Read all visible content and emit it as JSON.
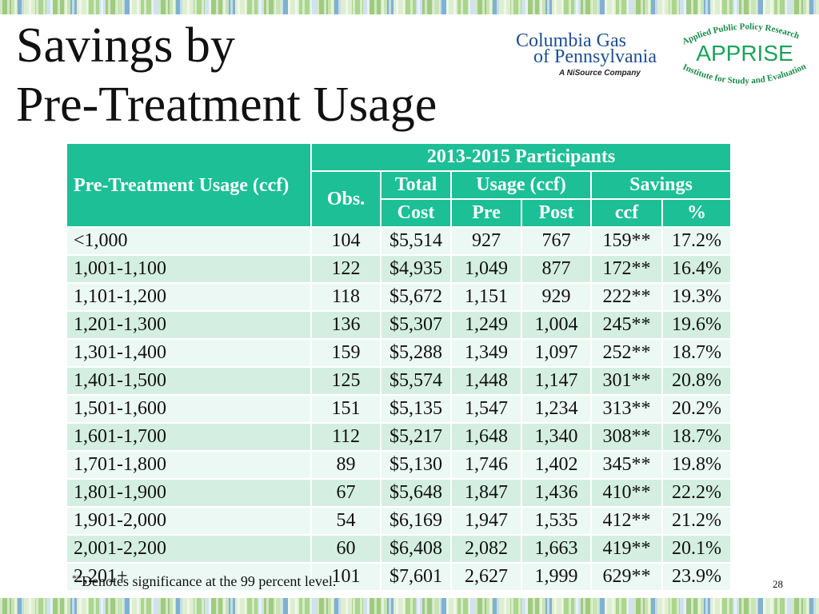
{
  "title": {
    "line1": "Savings by",
    "line2": "Pre-Treatment Usage"
  },
  "logos": {
    "columbia": {
      "line1": "Columbia Gas",
      "line2": "of Pennsylvania",
      "tagline": "A NiSource Company"
    },
    "apprise": {
      "arc_top": "Applied Public Policy Research",
      "name": "APPRISE",
      "arc_bottom": "Institute for Study and Evaluation"
    }
  },
  "table": {
    "group_header": "2013-2015 Participants",
    "row_header": "Pre-Treatment Usage (ccf)",
    "obs": "Obs.",
    "total_cost_top": "Total",
    "total_cost_bottom": "Cost",
    "usage_header": "Usage (ccf)",
    "savings_header": "Savings",
    "pre": "Pre",
    "post": "Post",
    "ccf": "ccf",
    "pct": "%",
    "rows": [
      [
        "<1,000",
        "104",
        "$5,514",
        "927",
        "767",
        "159**",
        "17.2%"
      ],
      [
        "1,001-1,100",
        "122",
        "$4,935",
        "1,049",
        "877",
        "172**",
        "16.4%"
      ],
      [
        "1,101-1,200",
        "118",
        "$5,672",
        "1,151",
        "929",
        "222**",
        "19.3%"
      ],
      [
        "1,201-1,300",
        "136",
        "$5,307",
        "1,249",
        "1,004",
        "245**",
        "19.6%"
      ],
      [
        "1,301-1,400",
        "159",
        "$5,288",
        "1,349",
        "1,097",
        "252**",
        "18.7%"
      ],
      [
        "1,401-1,500",
        "125",
        "$5,574",
        "1,448",
        "1,147",
        "301**",
        "20.8%"
      ],
      [
        "1,501-1,600",
        "151",
        "$5,135",
        "1,547",
        "1,234",
        "313**",
        "20.2%"
      ],
      [
        "1,601-1,700",
        "112",
        "$5,217",
        "1,648",
        "1,340",
        "308**",
        "18.7%"
      ],
      [
        "1,701-1,800",
        "89",
        "$5,130",
        "1,746",
        "1,402",
        "345**",
        "19.8%"
      ],
      [
        "1,801-1,900",
        "67",
        "$5,648",
        "1,847",
        "1,436",
        "410**",
        "22.2%"
      ],
      [
        "1,901-2,000",
        "54",
        "$6,169",
        "1,947",
        "1,535",
        "412**",
        "21.2%"
      ],
      [
        "2,001-2,200",
        "60",
        "$6,408",
        "2,082",
        "1,663",
        "419**",
        "20.1%"
      ],
      [
        "2,201+",
        "101",
        "$7,601",
        "2,627",
        "1,999",
        "629**",
        "23.9%"
      ]
    ]
  },
  "footnote": {
    "mark": "**",
    "text": "Denotes significance at the 99 percent level."
  },
  "slide_number": "28",
  "colors": {
    "header_bg": "#1dbf96",
    "row_light": "#ecf8f3",
    "row_dark": "#d4efe2",
    "columbia_blue": "#1d4f91",
    "apprise_green": "#1aa35a"
  }
}
